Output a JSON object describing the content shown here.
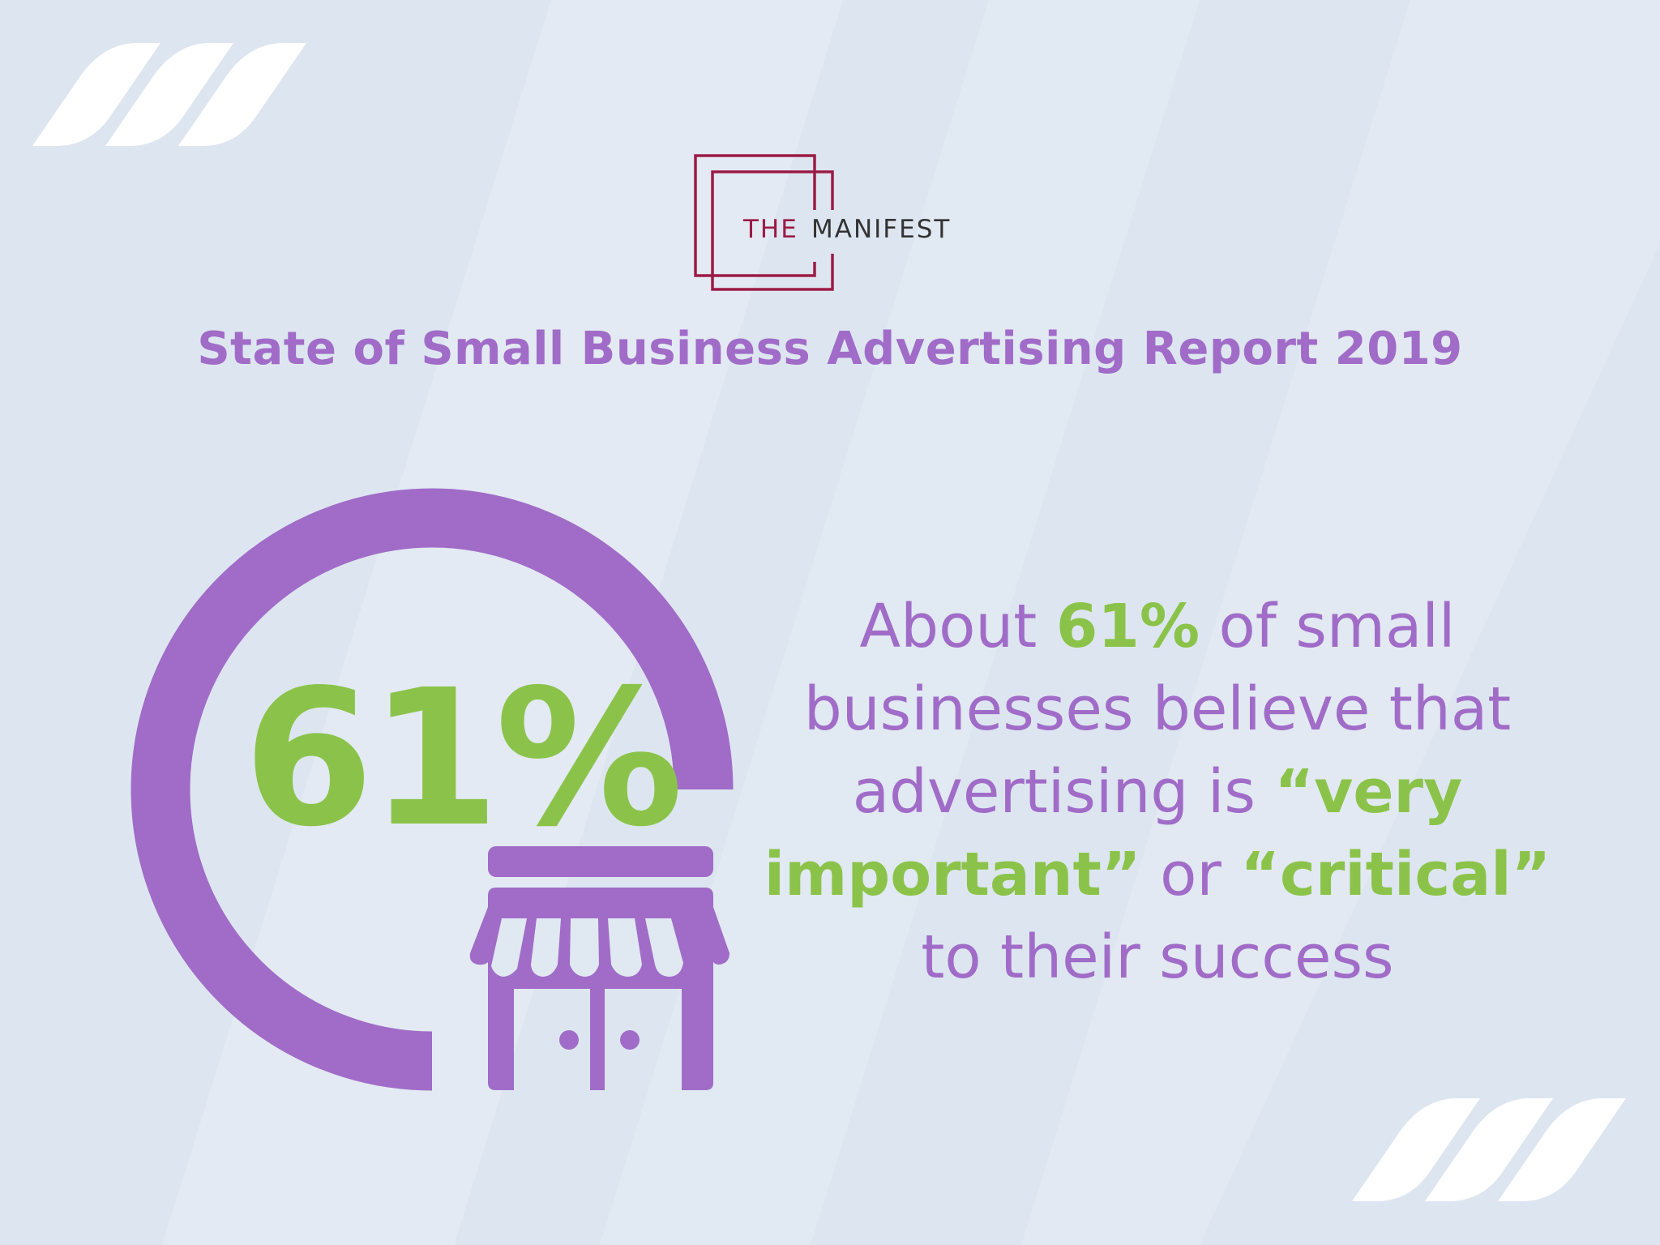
{
  "logo": {
    "word1": "THE",
    "word2": "MANIFEST"
  },
  "title": "State of Small Business Advertising Report 2019",
  "stat": {
    "value_label": "61%",
    "value_percent": 61
  },
  "statement": {
    "p1": "About ",
    "h1": "61%",
    "p2": " of small businesses believe that advertising is ",
    "h2": "“very important”",
    "p3": " or ",
    "h3": "“critical”",
    "p4": " to their success"
  },
  "icons": {
    "store": "storefront-icon",
    "decor": "slash-stripes"
  },
  "colors": {
    "purple": "#a06cc8",
    "green": "#8bc34a",
    "logo_red": "#9b1b45",
    "logo_dark": "#333333",
    "background": "#dde6f0"
  }
}
